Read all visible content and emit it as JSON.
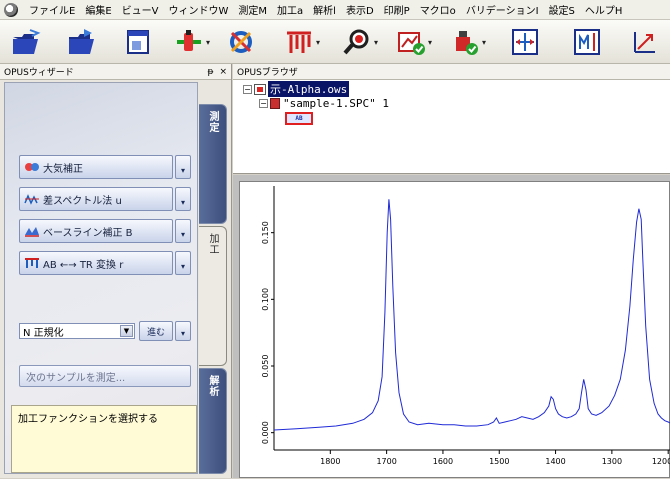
{
  "menubar": {
    "items": [
      "ファイルE",
      "編集E",
      "ビューV",
      "ウィンドウW",
      "測定M",
      "加工a",
      "解析l",
      "表示D",
      "印刷P",
      "マクロo",
      "バリデーションI",
      "設定S",
      "ヘルプH"
    ]
  },
  "toolbar": {
    "buttons": [
      {
        "icon": "open-folder-icon"
      },
      {
        "icon": "save-folder-icon"
      },
      {
        "icon": "window-icon"
      },
      {
        "icon": "flask-icon",
        "has_dropdown": true
      },
      {
        "icon": "tools-icon"
      },
      {
        "icon": "peak-pick-icon",
        "has_dropdown": true
      },
      {
        "icon": "magnifier-icon",
        "has_dropdown": true
      },
      {
        "icon": "chart-check-icon",
        "has_dropdown": true
      },
      {
        "icon": "weight-check-icon",
        "has_dropdown": true
      },
      {
        "icon": "expand-view-icon"
      },
      {
        "icon": "scale-view-icon"
      },
      {
        "icon": "cursor-axis-icon"
      }
    ]
  },
  "wizard": {
    "title": "OPUSウィザード",
    "pin": "ᵽ",
    "close": "×",
    "functions": [
      {
        "label": "大気補正",
        "icon": "atmosphere-icon"
      },
      {
        "label": "差スペクトル法 u",
        "icon": "difference-icon"
      },
      {
        "label": "ベースライン補正 B",
        "icon": "baseline-icon"
      },
      {
        "label": "AB ←→ TR 変換 r",
        "icon": "convert-icon"
      }
    ],
    "select_value": "N 正規化",
    "proceed_label": "進む",
    "next_sample_label": "次のサンプルを測定...",
    "info_text": "加工ファンクションを選択する",
    "tabs": [
      "測定",
      "加工",
      "解析"
    ]
  },
  "browser": {
    "title": "OPUSブラウザ",
    "workspace": "示-Alpha.ows",
    "file": "\"sample-1.SPC\" 1",
    "block": "AB"
  },
  "chart_data": {
    "type": "line",
    "xlim": [
      1900,
      1195
    ],
    "ylim": [
      -0.01,
      0.185
    ],
    "x_ticks": [
      1800,
      1700,
      1600,
      1500,
      1400,
      1300,
      1200
    ],
    "y_ticks": [
      0.0,
      0.05,
      0.1,
      0.15
    ],
    "x_tick_labels": [
      "1800",
      "1700",
      "1600",
      "1500",
      "1400",
      "1300",
      "1200"
    ],
    "y_tick_labels": [
      "0.000",
      "0.050",
      "0.100",
      "0.150"
    ],
    "series": [
      {
        "color": "#1f2ad6",
        "x": [
          1900,
          1860,
          1820,
          1790,
          1760,
          1740,
          1725,
          1715,
          1708,
          1703,
          1699,
          1696,
          1693,
          1689,
          1684,
          1678,
          1670,
          1660,
          1645,
          1625,
          1600,
          1580,
          1560,
          1540,
          1520,
          1510,
          1505,
          1500,
          1490,
          1480,
          1470,
          1460,
          1450,
          1440,
          1430,
          1420,
          1412,
          1408,
          1404,
          1400,
          1395,
          1388,
          1380,
          1372,
          1364,
          1358,
          1354,
          1350,
          1346,
          1342,
          1336,
          1328,
          1318,
          1305,
          1295,
          1285,
          1276,
          1268,
          1262,
          1256,
          1252,
          1248,
          1245,
          1240,
          1233,
          1225,
          1218,
          1212,
          1206,
          1200,
          1195
        ],
        "y": [
          0.002,
          0.003,
          0.004,
          0.005,
          0.007,
          0.01,
          0.015,
          0.024,
          0.042,
          0.09,
          0.15,
          0.175,
          0.16,
          0.11,
          0.06,
          0.03,
          0.014,
          0.008,
          0.006,
          0.007,
          0.006,
          0.006,
          0.005,
          0.005,
          0.006,
          0.008,
          0.011,
          0.007,
          0.008,
          0.009,
          0.01,
          0.012,
          0.011,
          0.01,
          0.012,
          0.015,
          0.02,
          0.027,
          0.025,
          0.018,
          0.014,
          0.012,
          0.011,
          0.012,
          0.014,
          0.018,
          0.03,
          0.04,
          0.032,
          0.018,
          0.014,
          0.013,
          0.015,
          0.02,
          0.028,
          0.04,
          0.062,
          0.095,
          0.13,
          0.158,
          0.168,
          0.16,
          0.13,
          0.08,
          0.04,
          0.022,
          0.014,
          0.011,
          0.009,
          0.008,
          0.007
        ]
      }
    ]
  }
}
